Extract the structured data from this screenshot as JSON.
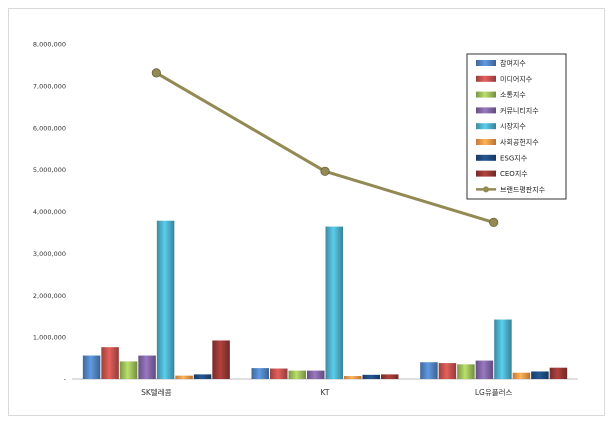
{
  "chart_data": {
    "type": "bar",
    "categories": [
      "SK텔레콤",
      "KT",
      "LG유플러스"
    ],
    "ylim": [
      0,
      8000000
    ],
    "yticks": [
      "-",
      "1,000,000",
      "2,000,000",
      "3,000,000",
      "4,000,000",
      "5,000,000",
      "6,000,000",
      "7,000,000",
      "8,000,000"
    ],
    "grid": false,
    "legend_position": "top-right",
    "series": [
      {
        "name": "참여지수",
        "color": "#4f81bd",
        "values": [
          560000,
          260000,
          400000
        ]
      },
      {
        "name": "미디어지수",
        "color": "#c0504d",
        "values": [
          760000,
          250000,
          380000
        ]
      },
      {
        "name": "소통지수",
        "color": "#9bbb59",
        "values": [
          420000,
          200000,
          350000
        ]
      },
      {
        "name": "커뮤니티지수",
        "color": "#8064a2",
        "values": [
          560000,
          200000,
          440000
        ]
      },
      {
        "name": "시장지수",
        "color": "#4bacc6",
        "values": [
          3780000,
          3640000,
          1420000
        ]
      },
      {
        "name": "사회공헌지수",
        "color": "#f79646",
        "values": [
          80000,
          70000,
          150000
        ]
      },
      {
        "name": "ESG지수",
        "color": "#1f497d",
        "values": [
          110000,
          100000,
          180000
        ]
      },
      {
        "name": "CEO지수",
        "color": "#943634",
        "values": [
          920000,
          110000,
          270000
        ]
      }
    ],
    "line_series": {
      "name": "브랜드평판지수",
      "color": "#938953",
      "values": [
        7310000,
        4960000,
        3740000
      ]
    }
  }
}
